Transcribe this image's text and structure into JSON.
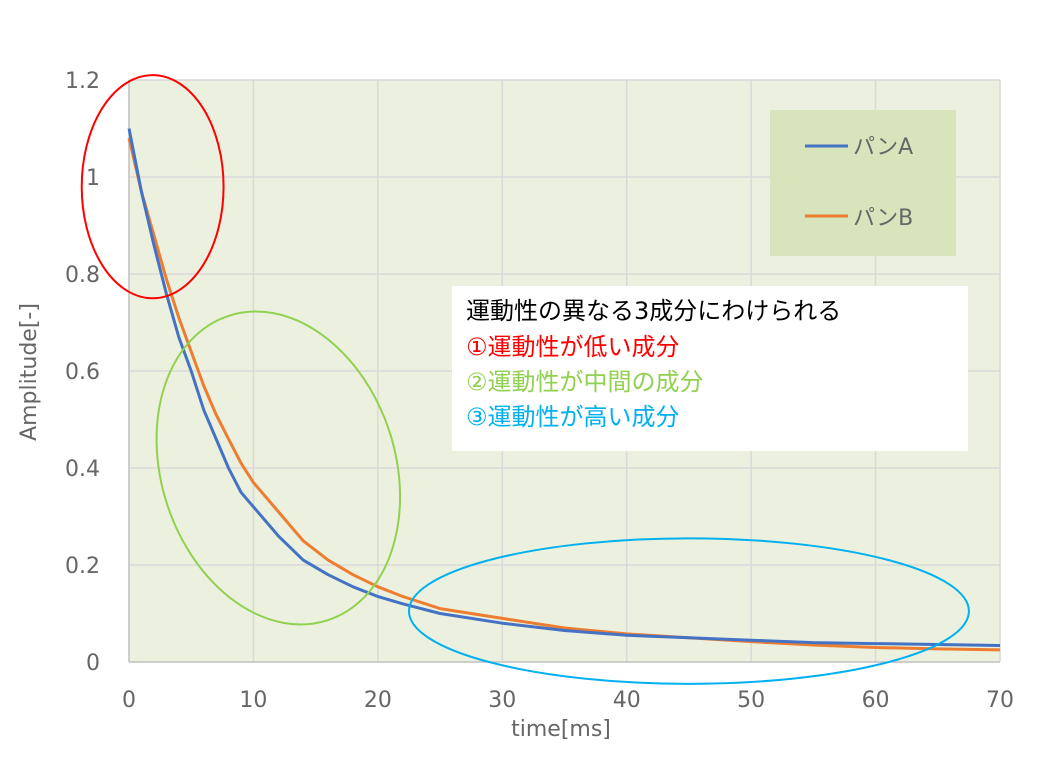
{
  "chart_data": {
    "type": "line",
    "xlabel": "time[ms]",
    "ylabel": "Amplitude[-]",
    "xlim": [
      0,
      70
    ],
    "ylim": [
      0,
      1.2
    ],
    "x_ticks": [
      "0",
      "10",
      "20",
      "30",
      "40",
      "50",
      "60",
      "70"
    ],
    "y_ticks": [
      "0",
      "0.2",
      "0.4",
      "0.6",
      "0.8",
      "1",
      "1.2"
    ],
    "grid": true,
    "legend_position": "top-right",
    "series": [
      {
        "name": "パンA",
        "color": "#4472c4",
        "x": [
          0,
          1,
          2,
          3,
          4,
          5,
          6,
          7,
          8,
          9,
          10,
          12,
          14,
          16,
          18,
          20,
          22,
          25,
          30,
          35,
          40,
          45,
          50,
          55,
          60,
          65,
          70
        ],
        "y": [
          1.1,
          0.97,
          0.86,
          0.76,
          0.67,
          0.6,
          0.52,
          0.46,
          0.4,
          0.35,
          0.32,
          0.26,
          0.21,
          0.18,
          0.155,
          0.135,
          0.12,
          0.1,
          0.08,
          0.065,
          0.055,
          0.05,
          0.045,
          0.04,
          0.038,
          0.036,
          0.034
        ]
      },
      {
        "name": "パンB",
        "color": "#ed7d31",
        "x": [
          0,
          1,
          2,
          3,
          4,
          5,
          6,
          7,
          8,
          9,
          10,
          12,
          14,
          16,
          18,
          20,
          22,
          25,
          30,
          35,
          40,
          45,
          50,
          55,
          60,
          65,
          70
        ],
        "y": [
          1.08,
          0.97,
          0.88,
          0.79,
          0.71,
          0.64,
          0.57,
          0.51,
          0.46,
          0.41,
          0.37,
          0.31,
          0.25,
          0.21,
          0.18,
          0.155,
          0.135,
          0.11,
          0.09,
          0.07,
          0.058,
          0.05,
          0.042,
          0.035,
          0.03,
          0.027,
          0.025
        ]
      }
    ],
    "annotations": {
      "lines": [
        {
          "text": "運動性の異なる3成分にわけられる",
          "color": "#000000"
        },
        {
          "text": "①運動性が低い成分",
          "color": "#ff0000"
        },
        {
          "text": "②運動性が中間の成分",
          "color": "#92d050"
        },
        {
          "text": "③運動性が高い成分",
          "color": "#00b0f0"
        }
      ],
      "ellipses": [
        {
          "color": "#ff0000",
          "cx": 1.9,
          "cy": 0.98,
          "rx": 5.7,
          "ry": 0.23
        },
        {
          "color": "#92d050",
          "cx": 12,
          "cy": 0.4,
          "rx": 9.4,
          "ry": 0.33
        },
        {
          "color": "#00b0f0",
          "cx": 45,
          "cy": 0.105,
          "rx": 22.5,
          "ry": 0.15
        }
      ]
    },
    "plot_background": "#ebf1de",
    "gridline_color": "#d9d9d9"
  }
}
